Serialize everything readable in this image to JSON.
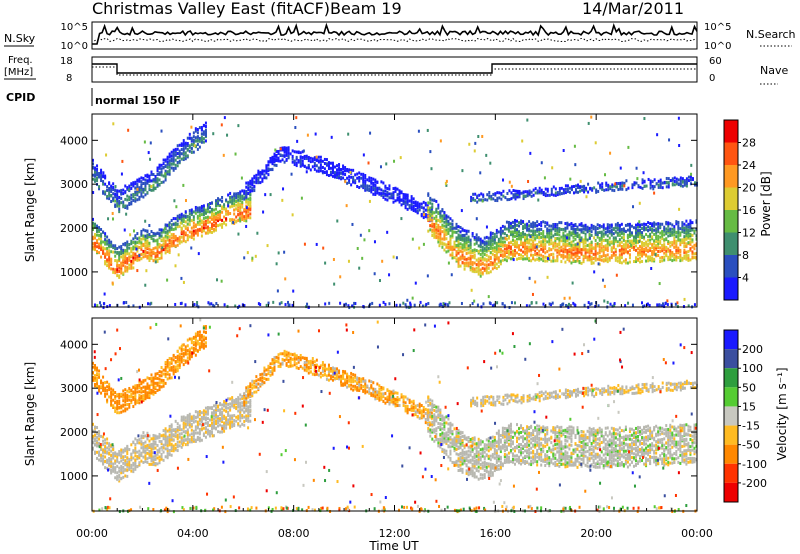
{
  "header": {
    "station": "Christmas Valley East (fitACF)",
    "beam": "Beam 19",
    "date": "14/Mar/2011"
  },
  "status_panels": {
    "nsky_label": "N.Sky",
    "nsky_ticks": [
      "10^5",
      "10^0"
    ],
    "nsearch_label": "N.Search",
    "nsearch_ticks": [
      "10^5",
      "10^0"
    ],
    "freq_label": "Freq.",
    "freq_unit": "[MHz]",
    "freq_ticks": [
      "18",
      "8"
    ],
    "nave_label": "Nave",
    "nave_ticks": [
      "60",
      "0"
    ],
    "cpid_label": "CPID",
    "cpid_value": "normal 150 IF"
  },
  "colors": {
    "power_scale": [
      "#1a1aff",
      "#2a4fbf",
      "#3f8f6f",
      "#66bb44",
      "#ddcc33",
      "#ff9922",
      "#ff5511",
      "#ee0000"
    ],
    "velocity_scale": [
      "#1a1aff",
      "#3b4f9f",
      "#2e9e3e",
      "#55cc33",
      "#c8c8c0",
      "#ffbb22",
      "#ff8800",
      "#ff3300",
      "#ee0000"
    ],
    "ground_scatter": "#b8b8b0"
  },
  "chart_data": [
    {
      "type": "heatmap",
      "panel": "power",
      "xlabel": "",
      "ylabel": "Slant Range [km]",
      "xlim": [
        "00:00",
        "24:00"
      ],
      "ylim": [
        200,
        4600
      ],
      "x_ticks": [
        "00:00",
        "04:00",
        "08:00",
        "12:00",
        "16:00",
        "20:00",
        "00:00"
      ],
      "y_ticks": [
        1000,
        2000,
        3000,
        4000
      ],
      "colorbar": {
        "label": "Power [dB]",
        "ticks": [
          4,
          8,
          12,
          16,
          20,
          24,
          28
        ]
      },
      "bands": [
        {
          "name": "main",
          "start_hour": 0.0,
          "end_hour": 6.3,
          "range_km": [
            [
              0.0,
              1800
            ],
            [
              1.0,
              1150
            ],
            [
              1.5,
              1350
            ],
            [
              2.0,
              1600
            ],
            [
              2.5,
              1500
            ],
            [
              3.5,
              1950
            ],
            [
              4.5,
              2150
            ],
            [
              5.5,
              2400
            ],
            [
              6.3,
              2500
            ]
          ],
          "width_km": 700,
          "peak_db": 28
        },
        {
          "name": "main-upper",
          "start_hour": 0.0,
          "end_hour": 4.5,
          "range_km": [
            [
              0.0,
              3300
            ],
            [
              1.0,
              2600
            ],
            [
              2.5,
              3100
            ],
            [
              3.5,
              3700
            ],
            [
              4.5,
              4200
            ]
          ],
          "width_km": 500,
          "peak_db": 12
        },
        {
          "name": "arc",
          "start_hour": 6.0,
          "end_hour": 13.5,
          "range_km": [
            [
              6.0,
              2800
            ],
            [
              7.5,
              3700
            ],
            [
              9.0,
              3450
            ],
            [
              10.5,
              3100
            ],
            [
              12.0,
              2750
            ],
            [
              13.5,
              2300
            ]
          ],
          "width_km": 350,
          "peak_db": 6
        },
        {
          "name": "evening",
          "start_hour": 13.3,
          "end_hour": 24.0,
          "range_km": [
            [
              13.3,
              2300
            ],
            [
              14.5,
              1500
            ],
            [
              15.5,
              1250
            ],
            [
              16.5,
              1650
            ],
            [
              20.0,
              1550
            ],
            [
              24.0,
              1650
            ]
          ],
          "width_km": 900,
          "peak_db": 26
        },
        {
          "name": "evening-upper",
          "start_hour": 15.0,
          "end_hour": 24.0,
          "range_km": [
            [
              15.0,
              2700
            ],
            [
              18.0,
              2850
            ],
            [
              21.0,
              3000
            ],
            [
              24.0,
              3100
            ]
          ],
          "width_km": 200,
          "peak_db": 10
        }
      ]
    },
    {
      "type": "heatmap",
      "panel": "velocity",
      "xlabel": "Time UT",
      "ylabel": "Slant Range [km]",
      "xlim": [
        "00:00",
        "24:00"
      ],
      "ylim": [
        200,
        4600
      ],
      "x_ticks": [
        "00:00",
        "04:00",
        "08:00",
        "12:00",
        "16:00",
        "20:00",
        "00:00"
      ],
      "y_ticks": [
        1000,
        2000,
        3000,
        4000
      ],
      "colorbar": {
        "label": "Velocity [m s⁻¹]",
        "ticks": [
          200,
          100,
          50,
          15,
          -15,
          -50,
          -100,
          -200
        ]
      },
      "bands": [
        {
          "name": "main",
          "start_hour": 0.0,
          "end_hour": 6.3,
          "range_km": [
            [
              0.0,
              1800
            ],
            [
              1.0,
              1150
            ],
            [
              1.5,
              1350
            ],
            [
              2.0,
              1600
            ],
            [
              2.5,
              1500
            ],
            [
              3.5,
              1950
            ],
            [
              4.5,
              2150
            ],
            [
              5.5,
              2400
            ],
            [
              6.3,
              2500
            ]
          ],
          "width_km": 700,
          "velocity": -5
        },
        {
          "name": "main-upper",
          "start_hour": 0.0,
          "end_hour": 4.5,
          "range_km": [
            [
              0.0,
              3300
            ],
            [
              1.0,
              2600
            ],
            [
              2.5,
              3100
            ],
            [
              3.5,
              3700
            ],
            [
              4.5,
              4200
            ]
          ],
          "width_km": 500,
          "velocity": -40
        },
        {
          "name": "arc",
          "start_hour": 6.0,
          "end_hour": 13.5,
          "range_km": [
            [
              6.0,
              2800
            ],
            [
              7.5,
              3700
            ],
            [
              9.0,
              3450
            ],
            [
              10.5,
              3100
            ],
            [
              12.0,
              2750
            ],
            [
              13.5,
              2300
            ]
          ],
          "width_km": 350,
          "velocity": -30
        },
        {
          "name": "evening",
          "start_hour": 13.3,
          "end_hour": 24.0,
          "range_km": [
            [
              13.3,
              2300
            ],
            [
              14.5,
              1500
            ],
            [
              15.5,
              1250
            ],
            [
              16.5,
              1650
            ],
            [
              20.0,
              1550
            ],
            [
              24.0,
              1650
            ]
          ],
          "width_km": 900,
          "velocity": 0
        },
        {
          "name": "evening-upper",
          "start_hour": 15.0,
          "end_hour": 24.0,
          "range_km": [
            [
              15.0,
              2700
            ],
            [
              18.0,
              2850
            ],
            [
              21.0,
              3000
            ],
            [
              24.0,
              3100
            ]
          ],
          "width_km": 200,
          "velocity": -10
        }
      ]
    }
  ]
}
